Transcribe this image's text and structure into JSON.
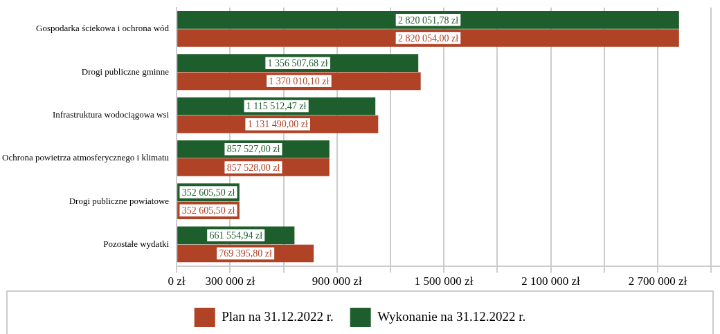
{
  "chart_data": {
    "type": "bar",
    "orientation": "horizontal",
    "categories": [
      "Gospodarka ściekowa i ochrona wód",
      "Drogi publiczne gminne",
      "Infrastruktura wodociągowa wsi",
      "Ochrona powietrza atmosferycznego i klimatu",
      "Drogi publiczne powiatowe",
      "Pozostałe wydatki"
    ],
    "series": [
      {
        "name": "Wykonanie na 31.12.2022 r.",
        "color": "#1e5e2c",
        "values": [
          2820051.78,
          1356507.68,
          1115512.47,
          857527.0,
          352605.5,
          661554.94
        ],
        "value_labels": [
          "2 820 051,78 zł",
          "1 356 507,68 zł",
          "1 115 512,47 zł",
          "857 527,00 zł",
          "352 605,50 zł",
          "661 554,94 zł"
        ]
      },
      {
        "name": "Plan na 31.12.2022 r.",
        "color": "#b04226",
        "values": [
          2820054.0,
          1370010.1,
          1131490.0,
          857528.0,
          352605.5,
          769395.8
        ],
        "value_labels": [
          "2 820 054,00 zł",
          "1 370 010,10 zł",
          "1 131 490,00 zł",
          "857 528,00 zł",
          "352 605,50 zł",
          "769 395,80 zł"
        ]
      }
    ],
    "xlim": [
      0,
      3050000
    ],
    "xticks": [
      {
        "value": 0,
        "label": "0 zł"
      },
      {
        "value": 300000,
        "label": "300 000 zł"
      },
      {
        "value": 600000,
        "label": null
      },
      {
        "value": 900000,
        "label": "900 000 zł"
      },
      {
        "value": 1200000,
        "label": null
      },
      {
        "value": 1500000,
        "label": "1 500 000 zł"
      },
      {
        "value": 1800000,
        "label": null
      },
      {
        "value": 2100000,
        "label": "2 100 000 zł"
      },
      {
        "value": 2400000,
        "label": null
      },
      {
        "value": 2700000,
        "label": "2 700 000 zł"
      },
      {
        "value": 3000000,
        "label": null
      }
    ],
    "grid": "x",
    "legend": "bottom"
  }
}
